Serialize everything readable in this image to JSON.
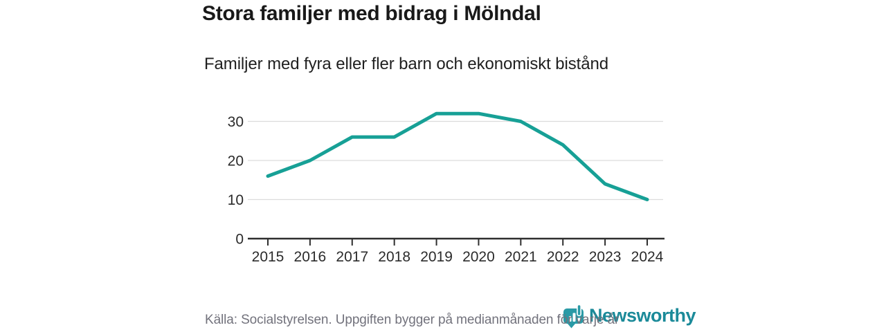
{
  "header": {
    "title": "Stora familjer med bidrag i Mölndal",
    "subtitle": "Familjer med fyra eller fler barn och ekonomiskt bistånd"
  },
  "footer": {
    "source": "Källa: Socialstyrelsen. Uppgiften bygger på medianmånaden för varje år"
  },
  "logo": {
    "brand": "Newsworthy",
    "icon": "newsworthy-shield-barchart-icon",
    "brand_color": "#1b8a99",
    "icon_color": "#2a9aa6"
  },
  "colors": {
    "line": "#17a096",
    "axis": "#2e2e2e",
    "grid": "#dcdcdc",
    "tick_label": "#2b2b2b",
    "title_text": "#191919",
    "footer_text": "#72727c",
    "background": "#ffffff"
  },
  "chart_data": {
    "type": "line",
    "title": "Stora familjer med bidrag i Mölndal",
    "subtitle": "Familjer med fyra eller fler barn och ekonomiskt bistånd",
    "x": [
      "2015",
      "2016",
      "2017",
      "2018",
      "2019",
      "2020",
      "2021",
      "2022",
      "2023",
      "2024"
    ],
    "series": [
      {
        "name": "Familjer med fyra eller fler barn och ekonomiskt bistånd",
        "values": [
          16,
          20,
          26,
          26,
          32,
          32,
          30,
          24,
          14,
          10
        ]
      }
    ],
    "ylim": [
      0,
      35
    ],
    "yticks": [
      0,
      10,
      20,
      30
    ],
    "grid": true,
    "legend": false,
    "line_color": "#17a096",
    "line_width": 5
  }
}
